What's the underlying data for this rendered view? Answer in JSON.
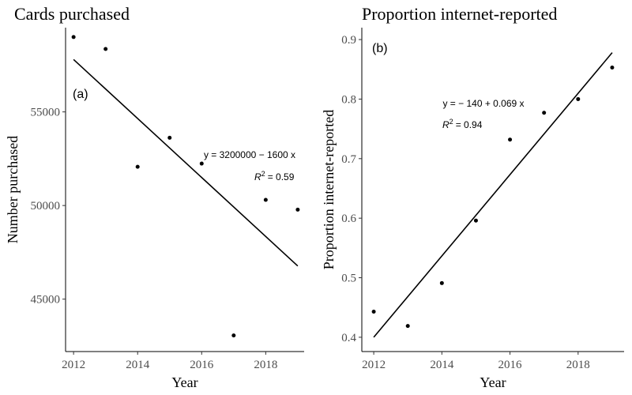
{
  "chart_data": [
    {
      "type": "scatter",
      "title": "Cards purchased",
      "xlabel": "Year",
      "ylabel": "Number purchased",
      "panel_label": "(a)",
      "x": [
        2012,
        2013,
        2014,
        2015,
        2016,
        2017,
        2018,
        2019
      ],
      "y": [
        59000,
        58360,
        52070,
        53620,
        52240,
        43060,
        50300,
        49780
      ],
      "xticks": [
        2012,
        2014,
        2016,
        2018
      ],
      "yticks": [
        45000,
        50000,
        55000
      ],
      "xlim": [
        2011.75,
        2019.2
      ],
      "ylim": [
        42200,
        59500
      ],
      "fit_line": {
        "x": [
          2012,
          2019
        ],
        "y": [
          57800,
          46770
        ]
      },
      "equation": "y = 3200000 − 1600 x",
      "r2": "R² = 0.59",
      "r2_value": "= 0.59",
      "grid": false,
      "color": "#000000"
    },
    {
      "type": "scatter",
      "title": "Proportion internet-reported",
      "xlabel": "Year",
      "ylabel": "Proportion internet-reported",
      "panel_label": "(b)",
      "x": [
        2012,
        2013,
        2014,
        2015,
        2016,
        2017,
        2018,
        2019
      ],
      "y": [
        0.443,
        0.419,
        0.491,
        0.596,
        0.732,
        0.777,
        0.8,
        0.853
      ],
      "xticks": [
        2012,
        2014,
        2016,
        2018
      ],
      "yticks": [
        0.4,
        0.5,
        0.6,
        0.7,
        0.8,
        0.9
      ],
      "ytick_labels": [
        "0.4",
        "0.5",
        "0.6",
        "0.7",
        "0.8",
        "0.9"
      ],
      "xlim": [
        2011.65,
        2019.35
      ],
      "ylim": [
        0.376,
        0.92
      ],
      "fit_line": {
        "x": [
          2012,
          2019
        ],
        "y": [
          0.4,
          0.878
        ]
      },
      "equation": "y = − 140 + 0.069 x",
      "r2": "R² = 0.94",
      "r2_value": "= 0.94",
      "grid": false,
      "color": "#000000"
    }
  ]
}
